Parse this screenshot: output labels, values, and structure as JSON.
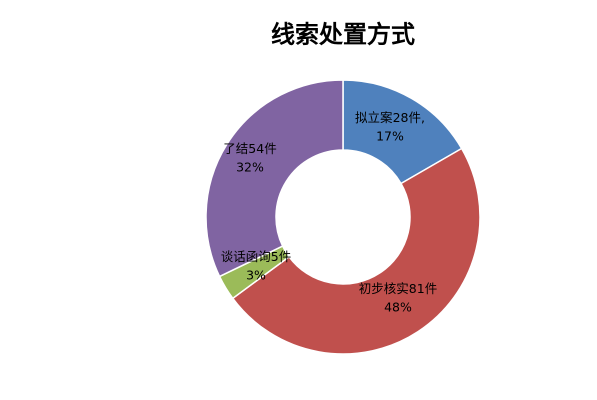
{
  "chart_data": {
    "type": "donut",
    "title": "线索处置方式",
    "categories": [
      "拟立案",
      "初步核实",
      "谈话函询",
      "了结"
    ],
    "values": [
      28,
      81,
      5,
      54
    ],
    "value_labels": [
      "28件,",
      "81件",
      "5件",
      "54件"
    ],
    "percentages": [
      17,
      48,
      3,
      32
    ],
    "percentage_labels": [
      "17%",
      "48%",
      "3%",
      "32%"
    ],
    "colors": [
      "#4f81bd",
      "#c0504d",
      "#9bbb59",
      "#8064a2"
    ]
  }
}
